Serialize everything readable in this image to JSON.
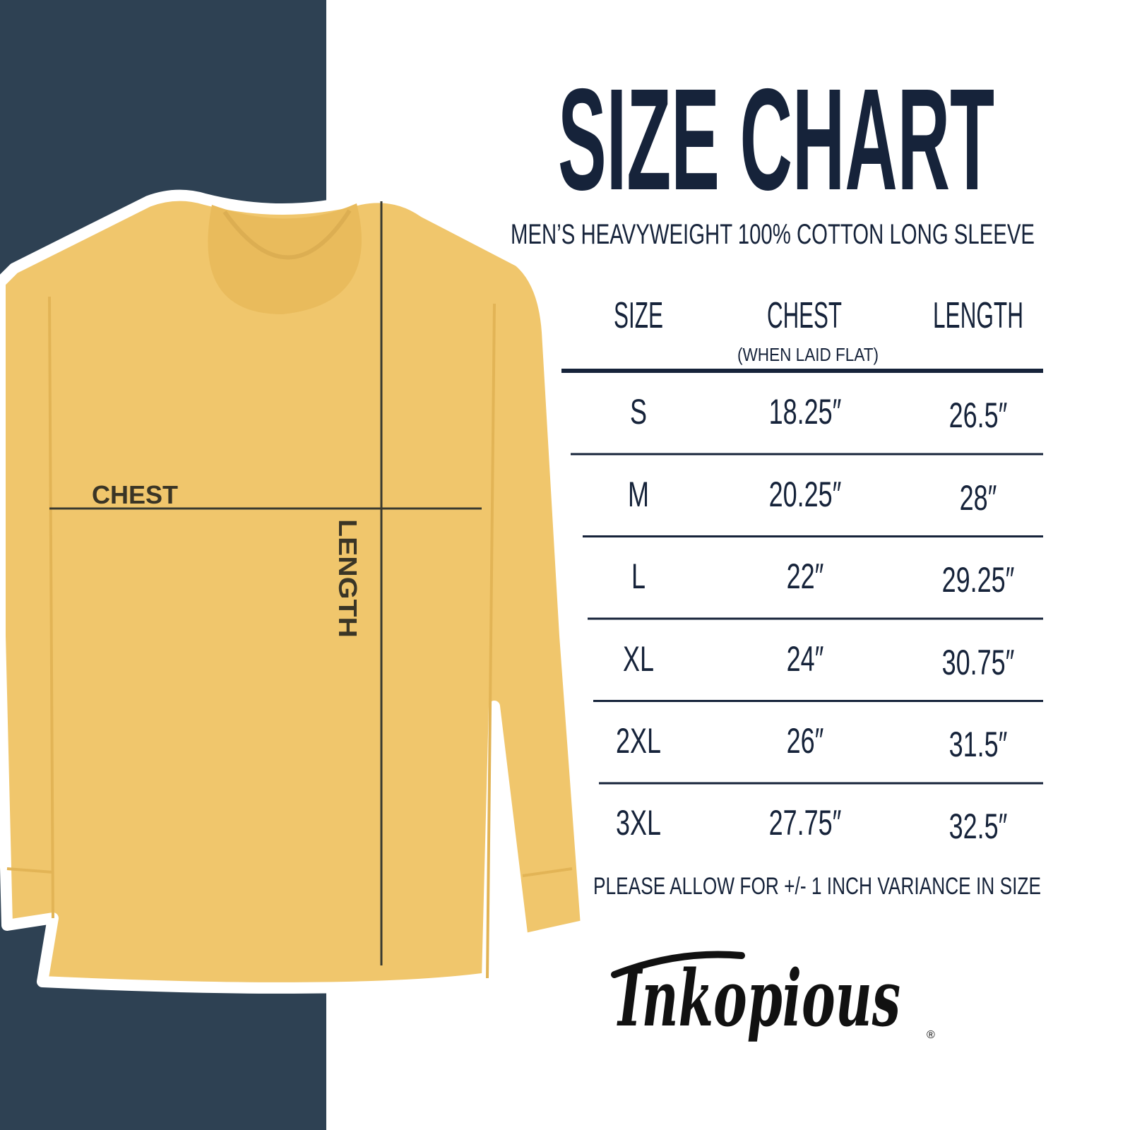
{
  "title": "SIZE CHART",
  "subtitle": "MEN’S HEAVYWEIGHT 100% COTTON LONG SLEEVE",
  "columns": {
    "size": "SIZE",
    "chest": "CHEST",
    "chest_note": "(WHEN LAID FLAT)",
    "length": "LENGTH"
  },
  "rows": [
    {
      "size": "S",
      "chest": "18.25″",
      "length": "26.5″"
    },
    {
      "size": "M",
      "chest": "20.25″",
      "length": "28″"
    },
    {
      "size": "L",
      "chest": "22″",
      "length": "29.25″"
    },
    {
      "size": "XL",
      "chest": "24″",
      "length": "30.75″"
    },
    {
      "size": "2XL",
      "chest": "26″",
      "length": "31.5″"
    },
    {
      "size": "3XL",
      "chest": "27.75″",
      "length": "32.5″"
    }
  ],
  "note": "PLEASE ALLOW FOR +/- 1 INCH VARIANCE IN SIZE",
  "shirt_labels": {
    "chest": "CHEST",
    "length": "LENGTH"
  },
  "brand": {
    "logo_text": "Inkopious",
    "registered": "®"
  },
  "colors": {
    "navy_panel": "#2e4153",
    "text": "#16233a",
    "shirt": "#f0c66c"
  }
}
